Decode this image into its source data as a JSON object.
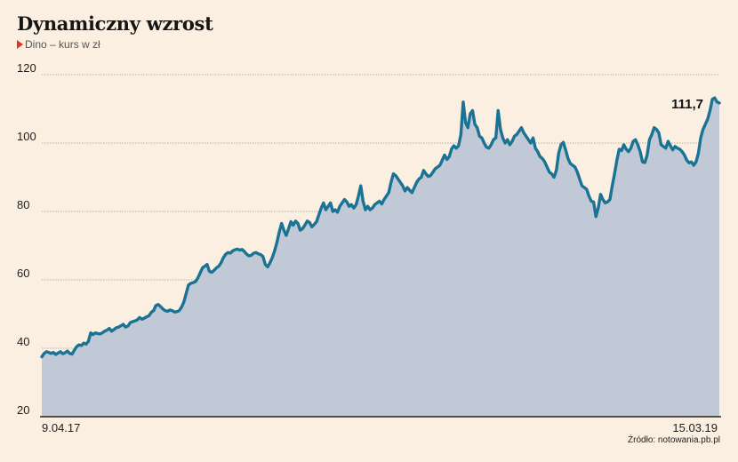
{
  "header": {
    "title": "Dynamiczny wzrost",
    "subtitle": "Dino – kurs w zł"
  },
  "footer": {
    "source": "Źródło: notowania.pb.pl"
  },
  "colors": {
    "line": "#1a7394",
    "area": "#c1c9d6",
    "background": "#fbefe2",
    "grid": "#9a9a9a",
    "marker": "#e3342b"
  },
  "chart_data": {
    "type": "area",
    "x_start_label": "9.04.17",
    "x_end_label": "15.03.19",
    "yticks": [
      20,
      40,
      60,
      80,
      100,
      120
    ],
    "ylim": [
      20,
      120
    ],
    "grid": true,
    "end_value_label": "111,7",
    "values": [
      37.5,
      38.5,
      39,
      38.8,
      38.5,
      38.8,
      38.2,
      38.6,
      39,
      38.4,
      38.7,
      39.2,
      38.5,
      38.3,
      39.5,
      40.5,
      41,
      40.8,
      41.5,
      41.2,
      42,
      44.5,
      44,
      44.5,
      44.3,
      44.2,
      44.5,
      45,
      45.3,
      45.8,
      45,
      45.5,
      46,
      46.2,
      46.6,
      47,
      46.2,
      46.5,
      47.5,
      47.8,
      48,
      48.3,
      49,
      48.5,
      48.8,
      49.2,
      49.5,
      50.5,
      51,
      52.5,
      52.8,
      52.2,
      51.5,
      51,
      50.8,
      51.2,
      51,
      50.6,
      50.7,
      51,
      52,
      53.5,
      56,
      58.5,
      59,
      59.2,
      59.5,
      60.5,
      62,
      63.5,
      64,
      64.5,
      62.5,
      62.2,
      62.8,
      63.5,
      64,
      65,
      66.5,
      67.5,
      68,
      67.8,
      68.5,
      68.8,
      69,
      68.7,
      68.9,
      68.3,
      67.5,
      67,
      67.2,
      67.8,
      68,
      67.6,
      67.4,
      66.8,
      64.5,
      63.8,
      65,
      66.5,
      68.5,
      71,
      74,
      76.5,
      74.5,
      73,
      75,
      77,
      76,
      77.2,
      76.5,
      74.5,
      75,
      76,
      77.2,
      76.8,
      75.5,
      76.2,
      77,
      79,
      81,
      82.5,
      80.5,
      81.5,
      82.5,
      80,
      80.5,
      79.8,
      81.5,
      82.5,
      83.5,
      82.8,
      81.5,
      82,
      81,
      82,
      84.5,
      87.5,
      83,
      80.5,
      81.5,
      80.5,
      81,
      82,
      82.5,
      83,
      82.2,
      83.5,
      84.5,
      85.5,
      88.5,
      91,
      90.5,
      89.5,
      88.5,
      87.5,
      86,
      87,
      86.2,
      85.5,
      87,
      88.5,
      89.5,
      90,
      92,
      91,
      90.2,
      90.5,
      91.5,
      92.5,
      93,
      93.5,
      95,
      96.5,
      95.2,
      96,
      98.3,
      99.2,
      98.5,
      99.2,
      102.5,
      112,
      106,
      104.5,
      108.5,
      109.5,
      105.5,
      104.5,
      102,
      101.5,
      100,
      98.8,
      98.5,
      99.5,
      101,
      101.5,
      109.5,
      104,
      101.5,
      100,
      101,
      99.5,
      100.5,
      102,
      102.5,
      103.5,
      104.5,
      103,
      102,
      101,
      100,
      101.5,
      98.5,
      97.5,
      96,
      95.5,
      94.5,
      93,
      91.5,
      91,
      90,
      92,
      97,
      99.5,
      100.2,
      98,
      95.5,
      94,
      93.5,
      93,
      91.5,
      89.5,
      87.5,
      87,
      86.5,
      84.5,
      83,
      82.8,
      78.5,
      81,
      85,
      83.5,
      82.5,
      82.8,
      83.5,
      87.5,
      91,
      95,
      98.2,
      97.8,
      99.5,
      98.2,
      97.5,
      98.5,
      100.5,
      101,
      99.5,
      97.5,
      94.5,
      94.3,
      96.5,
      101,
      102.5,
      104.5,
      104,
      103,
      99.5,
      99,
      98.5,
      100.5,
      99.2,
      98,
      99,
      98.5,
      98.2,
      97.5,
      96.5,
      95,
      94.2,
      94.5,
      93.5,
      94.5,
      97,
      101.5,
      104,
      105.5,
      107,
      109.5,
      112.8,
      113.2,
      112,
      111.7
    ]
  }
}
